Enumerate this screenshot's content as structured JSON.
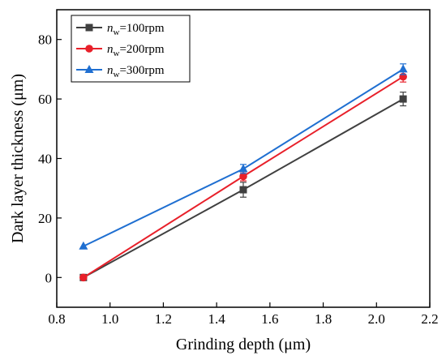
{
  "chart_data": {
    "type": "line",
    "xlabel": "Grinding depth (μm)",
    "ylabel": "Dark layer thickness (μm)",
    "xlim": [
      0.8,
      2.2
    ],
    "ylim": [
      -10,
      90
    ],
    "xticks": [
      "0.8",
      "1.0",
      "1.2",
      "1.4",
      "1.6",
      "1.8",
      "2.0",
      "2.2"
    ],
    "yticks": [
      "0",
      "20",
      "40",
      "60",
      "80"
    ],
    "xtick_values": [
      0.8,
      1.0,
      1.2,
      1.4,
      1.6,
      1.8,
      2.0,
      2.2
    ],
    "ytick_values": [
      0,
      20,
      40,
      60,
      80
    ],
    "grid": false,
    "legend_position": "top-left",
    "x": [
      0.9,
      1.5,
      2.1
    ],
    "series": [
      {
        "name_main": "n",
        "name_sub": "w",
        "name_rest": "=100rpm",
        "marker": "square",
        "color": "#404040",
        "values": [
          0,
          29.5,
          60
        ],
        "errors": [
          0,
          2.5,
          2.3
        ]
      },
      {
        "name_main": "n",
        "name_sub": "w",
        "name_rest": "=200rpm",
        "marker": "circle",
        "color": "#e8202a",
        "values": [
          0,
          34,
          67.5
        ],
        "errors": [
          0,
          1.5,
          1.8
        ]
      },
      {
        "name_main": "n",
        "name_sub": "w",
        "name_rest": "=300rpm",
        "marker": "triangle",
        "color": "#1f6fd1",
        "values": [
          10.5,
          36.5,
          70
        ],
        "errors": [
          0,
          1.5,
          1.8
        ]
      }
    ]
  }
}
